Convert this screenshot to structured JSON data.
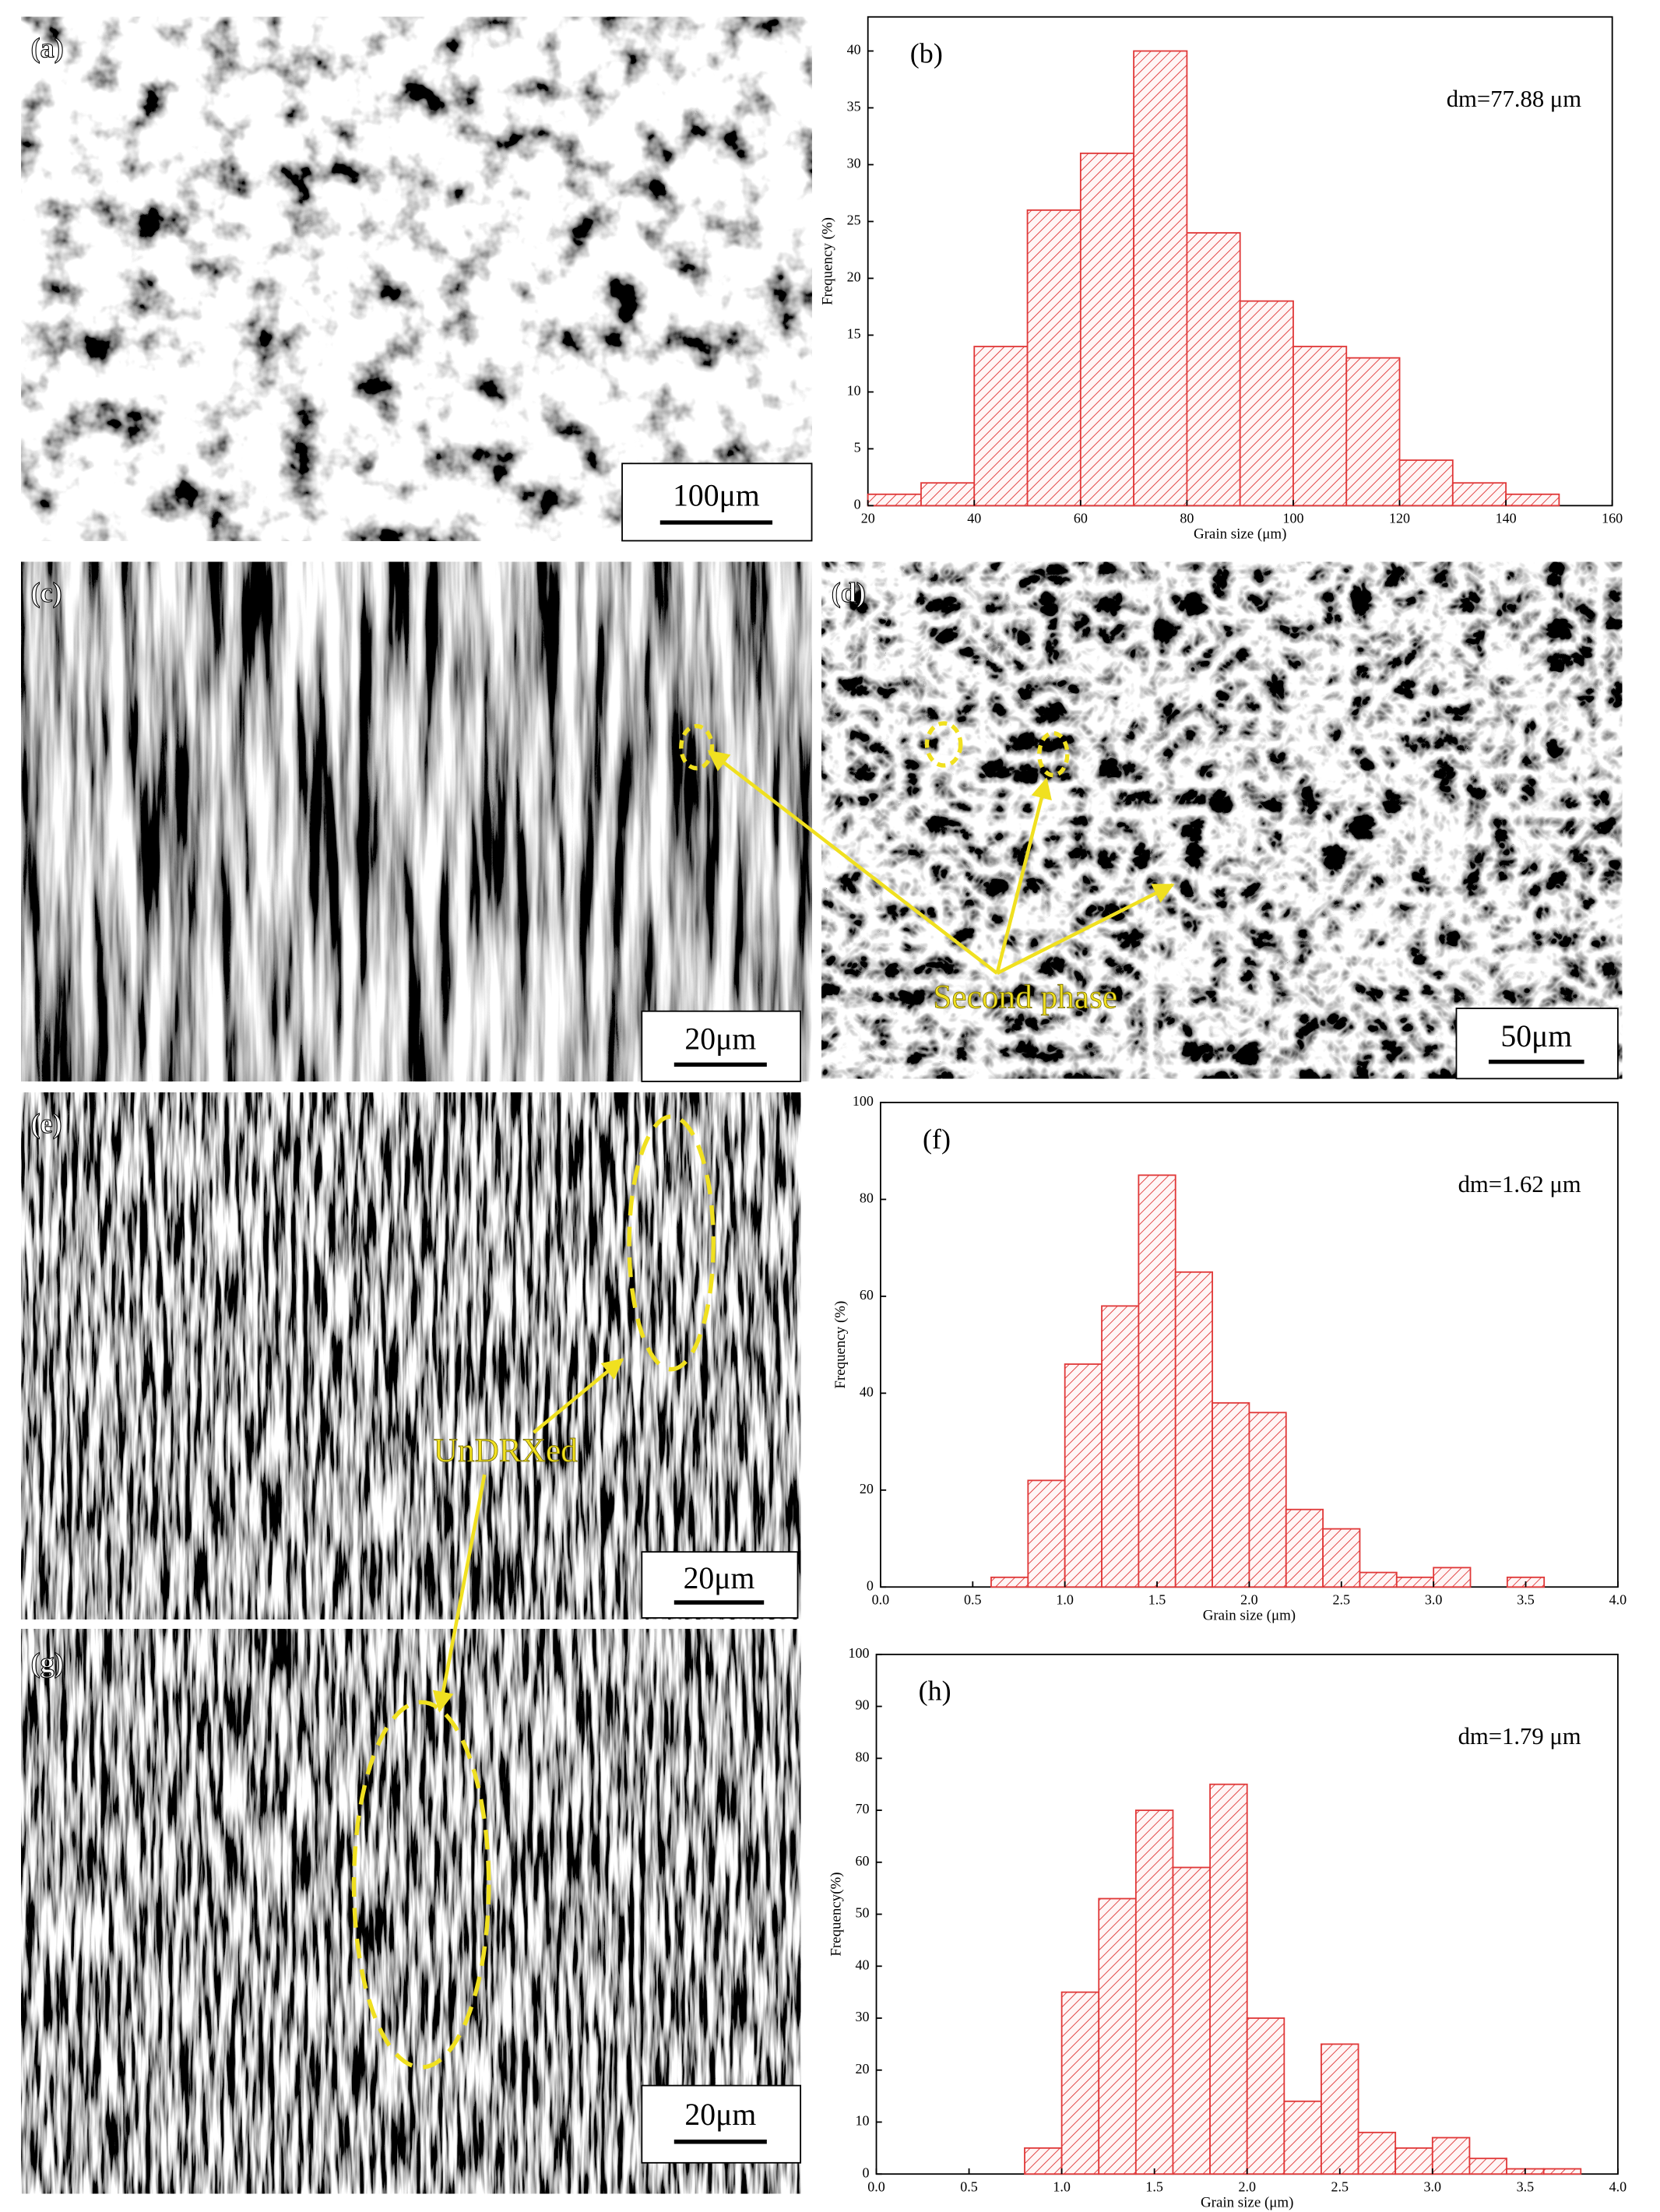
{
  "panels": {
    "a": {
      "label": "(a)",
      "scale_bar": "100μm"
    },
    "c": {
      "label": "(c)",
      "scale_bar": "20μm"
    },
    "d": {
      "label": "(d)",
      "scale_bar": "50μm",
      "annotation": "Second phase"
    },
    "e": {
      "label": "(e)",
      "scale_bar": "20μm",
      "annotation": "UnDRXed"
    },
    "g": {
      "label": "(g)",
      "scale_bar": "20μm"
    }
  },
  "chart_data": [
    {
      "type": "histogram",
      "label": "(b)",
      "annotation": "dm=77.88 μm",
      "x_label": "Grain size (μm)",
      "y_label": "Frequency (%)",
      "color": "#e03838",
      "bins": [
        20,
        30,
        40,
        50,
        60,
        70,
        80,
        90,
        100,
        110,
        120,
        130,
        140,
        150
      ],
      "values": [
        1,
        2,
        14,
        26,
        31,
        40,
        24,
        18,
        14,
        13,
        4,
        2,
        1
      ],
      "xlim": [
        20,
        160
      ],
      "xticks": [
        20,
        40,
        60,
        80,
        100,
        120,
        140,
        160
      ],
      "ylim": [
        0,
        43
      ],
      "yticks": [
        0,
        5,
        10,
        15,
        20,
        25,
        30,
        35,
        40
      ]
    },
    {
      "type": "histogram",
      "label": "(f)",
      "annotation": "dm=1.62 μm",
      "x_label": "Grain size (μm)",
      "y_label": "Frequency (%)",
      "color": "#e03838",
      "bins": [
        0.6,
        0.8,
        1.0,
        1.2,
        1.4,
        1.6,
        1.8,
        2.0,
        2.2,
        2.4,
        2.6,
        2.8,
        3.0,
        3.2,
        3.4,
        3.6
      ],
      "values": [
        2,
        22,
        46,
        58,
        85,
        65,
        38,
        36,
        16,
        12,
        3,
        2,
        4,
        0,
        2
      ],
      "xlim": [
        0,
        4
      ],
      "xticks": [
        {
          "value": 0,
          "label": "0.0"
        },
        0.5,
        {
          "value": 1,
          "label": "1.0"
        },
        1.5,
        {
          "value": 2,
          "label": "2.0"
        },
        2.5,
        {
          "value": 3,
          "label": "3.0"
        },
        3.5,
        {
          "value": 4,
          "label": "4.0"
        }
      ],
      "ylim": [
        0,
        100
      ],
      "yticks": [
        0,
        20,
        40,
        60,
        80,
        100
      ]
    },
    {
      "type": "histogram",
      "label": "(h)",
      "annotation": "dm=1.79 μm",
      "x_label": "Grain size (μm)",
      "y_label": "Frequency(%)",
      "color": "#e03838",
      "bins": [
        0.8,
        1.0,
        1.2,
        1.4,
        1.6,
        1.8,
        2.0,
        2.2,
        2.4,
        2.6,
        2.8,
        3.0,
        3.2,
        3.4,
        3.6,
        3.8
      ],
      "values": [
        5,
        35,
        53,
        70,
        59,
        75,
        30,
        14,
        25,
        8,
        5,
        7,
        3,
        1,
        1
      ],
      "xlim": [
        0,
        4
      ],
      "xticks": [
        {
          "value": 0,
          "label": "0.0"
        },
        0.5,
        {
          "value": 1,
          "label": "1.0"
        },
        1.5,
        {
          "value": 2,
          "label": "2.0"
        },
        2.5,
        {
          "value": 3,
          "label": "3.0"
        },
        3.5,
        {
          "value": 4,
          "label": "4.0"
        }
      ],
      "ylim": [
        0,
        100
      ],
      "yticks": [
        0,
        10,
        20,
        30,
        40,
        50,
        60,
        70,
        80,
        90,
        100
      ]
    }
  ]
}
